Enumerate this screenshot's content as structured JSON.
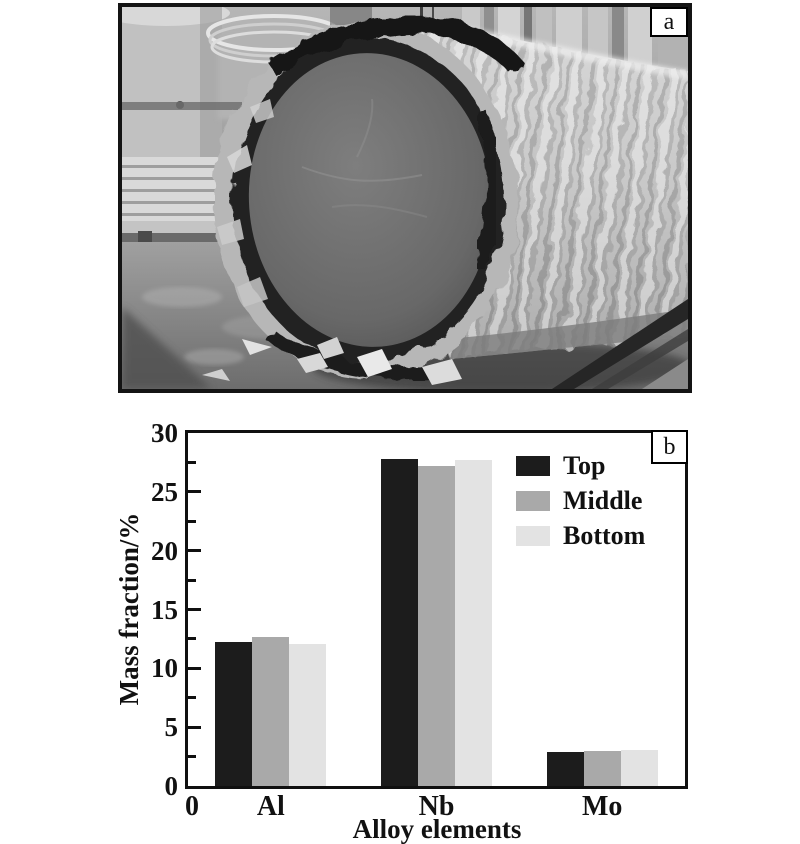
{
  "page": {
    "background": "#ffffff"
  },
  "panel_a": {
    "label": "a"
  },
  "chart_data": {
    "type": "bar",
    "panel_label": "b",
    "categories": [
      "Al",
      "Nb",
      "Mo"
    ],
    "series": [
      {
        "name": "Top",
        "color": "#1c1c1c",
        "values": [
          12.2,
          27.8,
          2.9
        ]
      },
      {
        "name": "Middle",
        "color": "#a9a9a9",
        "values": [
          12.7,
          27.2,
          3.0
        ]
      },
      {
        "name": "Bottom",
        "color": "#e3e3e3",
        "values": [
          12.1,
          27.7,
          3.1
        ]
      }
    ],
    "title": "",
    "xlabel": "Alloy elements",
    "ylabel": "Mass fraction/%",
    "x_origin_label": "0",
    "ylim": [
      0,
      30
    ],
    "yticks": [
      0,
      5,
      10,
      15,
      20,
      25,
      30
    ],
    "minor_tick_step": 2.5,
    "legend_position": "top-right",
    "grid": false,
    "frame_color": "#101010"
  }
}
